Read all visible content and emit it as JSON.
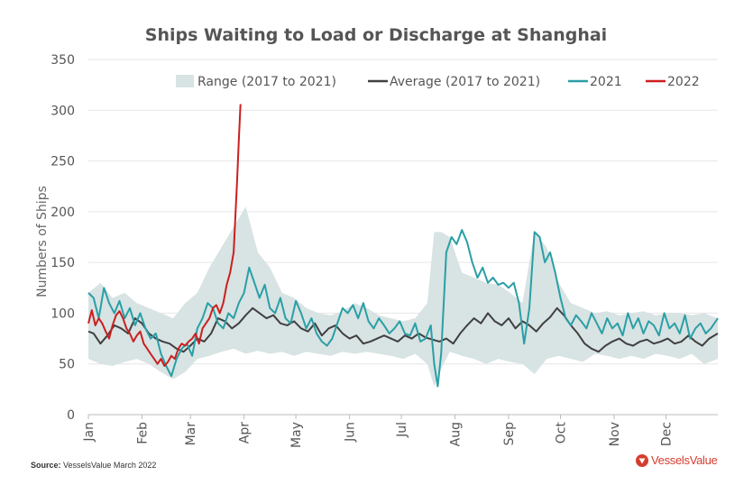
{
  "source": {
    "prefix": "Source:",
    "text": "VesselsValue March 2022"
  },
  "brand": {
    "name": "VesselsValue",
    "color": "#d63d2e",
    "icon": "vesselsvalue-logo-icon"
  },
  "chart_data": {
    "type": "line",
    "title": "Ships Waiting to Load or Discharge at Shanghai",
    "xlabel": "",
    "ylabel": "Numbers of Ships",
    "ylim": [
      0,
      350
    ],
    "yticks": [
      0,
      50,
      100,
      150,
      200,
      250,
      300,
      350
    ],
    "x_tick_labels": [
      "Jan",
      "Feb",
      "Mar",
      "Apr",
      "May",
      "Jun",
      "Jul",
      "Aug",
      "Sep",
      "Oct",
      "Nov",
      "Dec"
    ],
    "x_unit": "day of year",
    "xlim": [
      1,
      365
    ],
    "grid": "horizontal",
    "legend_position": "top-right",
    "range_band": {
      "name": "Range (2017 to 2021)",
      "color": "#d8e3e3",
      "x": [
        1,
        8,
        15,
        22,
        29,
        36,
        43,
        50,
        57,
        64,
        71,
        78,
        85,
        92,
        99,
        106,
        113,
        120,
        127,
        134,
        141,
        148,
        155,
        162,
        169,
        176,
        183,
        190,
        197,
        201,
        205,
        210,
        217,
        224,
        231,
        238,
        245,
        252,
        259,
        266,
        273,
        280,
        287,
        294,
        301,
        308,
        315,
        322,
        329,
        336,
        343,
        350,
        357,
        365
      ],
      "low": [
        55,
        50,
        48,
        52,
        55,
        50,
        42,
        35,
        42,
        55,
        58,
        62,
        65,
        60,
        63,
        60,
        62,
        58,
        62,
        60,
        58,
        62,
        60,
        62,
        60,
        58,
        55,
        60,
        50,
        28,
        45,
        62,
        58,
        55,
        50,
        55,
        52,
        50,
        40,
        55,
        58,
        55,
        52,
        60,
        58,
        55,
        58,
        55,
        60,
        58,
        55,
        60,
        50,
        55
      ],
      "high": [
        120,
        130,
        115,
        120,
        110,
        105,
        100,
        95,
        110,
        120,
        145,
        165,
        185,
        205,
        160,
        145,
        120,
        115,
        105,
        100,
        98,
        102,
        110,
        105,
        98,
        95,
        92,
        95,
        110,
        180,
        180,
        175,
        140,
        135,
        130,
        128,
        120,
        110,
        180,
        165,
        130,
        110,
        105,
        100,
        102,
        98,
        100,
        102,
        98,
        100,
        100,
        98,
        100,
        95
      ]
    },
    "series": [
      {
        "name": "Average (2017 to 2021)",
        "color": "#404040",
        "x": [
          1,
          4,
          8,
          12,
          16,
          20,
          24,
          28,
          32,
          36,
          40,
          44,
          48,
          52,
          56,
          60,
          64,
          68,
          72,
          76,
          80,
          84,
          88,
          92,
          96,
          100,
          104,
          108,
          112,
          116,
          120,
          124,
          128,
          132,
          136,
          140,
          144,
          148,
          152,
          156,
          160,
          164,
          168,
          172,
          176,
          180,
          184,
          188,
          192,
          196,
          200,
          204,
          208,
          212,
          216,
          220,
          224,
          228,
          232,
          236,
          240,
          244,
          248,
          252,
          256,
          260,
          264,
          268,
          272,
          276,
          280,
          284,
          288,
          292,
          296,
          300,
          304,
          308,
          312,
          316,
          320,
          324,
          328,
          332,
          336,
          340,
          344,
          348,
          352,
          356,
          360,
          365
        ],
        "values": [
          82,
          80,
          70,
          78,
          88,
          85,
          80,
          95,
          90,
          80,
          75,
          72,
          70,
          65,
          62,
          68,
          75,
          72,
          80,
          95,
          92,
          85,
          90,
          98,
          105,
          100,
          95,
          98,
          90,
          88,
          92,
          85,
          82,
          90,
          78,
          85,
          88,
          80,
          75,
          78,
          70,
          72,
          75,
          78,
          75,
          72,
          78,
          75,
          80,
          76,
          74,
          72,
          75,
          70,
          80,
          88,
          95,
          90,
          100,
          92,
          88,
          95,
          85,
          92,
          88,
          82,
          90,
          96,
          105,
          98,
          88,
          80,
          70,
          65,
          62,
          68,
          72,
          75,
          70,
          68,
          72,
          74,
          70,
          72,
          75,
          70,
          72,
          78,
          72,
          68,
          75,
          80
        ]
      },
      {
        "name": "2021",
        "color": "#2a9fa6",
        "x": [
          1,
          4,
          7,
          10,
          13,
          16,
          19,
          22,
          25,
          28,
          31,
          34,
          37,
          40,
          43,
          46,
          49,
          52,
          55,
          58,
          61,
          64,
          67,
          70,
          73,
          76,
          79,
          82,
          85,
          88,
          91,
          94,
          97,
          100,
          103,
          106,
          109,
          112,
          115,
          118,
          121,
          124,
          127,
          130,
          133,
          136,
          139,
          142,
          145,
          148,
          151,
          154,
          157,
          160,
          163,
          166,
          169,
          172,
          175,
          178,
          181,
          184,
          187,
          190,
          193,
          196,
          199,
          201,
          203,
          205,
          208,
          211,
          214,
          217,
          220,
          223,
          226,
          229,
          232,
          235,
          238,
          241,
          244,
          247,
          250,
          253,
          256,
          259,
          262,
          265,
          268,
          271,
          274,
          277,
          280,
          283,
          286,
          289,
          292,
          295,
          298,
          301,
          304,
          307,
          310,
          313,
          316,
          319,
          322,
          325,
          328,
          331,
          334,
          337,
          340,
          343,
          346,
          349,
          352,
          355,
          358,
          361,
          365
        ],
        "values": [
          120,
          115,
          95,
          125,
          110,
          100,
          112,
          95,
          105,
          88,
          100,
          85,
          75,
          80,
          60,
          48,
          38,
          55,
          65,
          70,
          58,
          85,
          95,
          110,
          105,
          90,
          85,
          100,
          95,
          110,
          120,
          145,
          130,
          115,
          128,
          105,
          100,
          115,
          95,
          90,
          112,
          100,
          85,
          95,
          80,
          72,
          68,
          75,
          90,
          105,
          100,
          108,
          95,
          110,
          92,
          85,
          95,
          88,
          80,
          85,
          92,
          80,
          78,
          90,
          72,
          75,
          88,
          50,
          28,
          60,
          160,
          175,
          168,
          182,
          170,
          150,
          135,
          145,
          130,
          135,
          128,
          130,
          125,
          130,
          110,
          70,
          105,
          180,
          175,
          150,
          160,
          140,
          115,
          95,
          88,
          98,
          92,
          85,
          100,
          90,
          80,
          95,
          85,
          90,
          78,
          100,
          85,
          95,
          80,
          92,
          88,
          78,
          100,
          85,
          90,
          80,
          98,
          75,
          85,
          90,
          80,
          85,
          95
        ]
      },
      {
        "name": "2022",
        "color": "#cc1f1f",
        "x": [
          1,
          3,
          5,
          7,
          9,
          11,
          13,
          15,
          17,
          19,
          21,
          23,
          25,
          27,
          29,
          31,
          33,
          35,
          37,
          39,
          41,
          43,
          45,
          47,
          49,
          51,
          53,
          55,
          57,
          59,
          61,
          63,
          65,
          67,
          69,
          71,
          73,
          75,
          77,
          79,
          81,
          83,
          85,
          86,
          87,
          88,
          89
        ],
        "values": [
          90,
          103,
          88,
          95,
          90,
          82,
          75,
          88,
          98,
          102,
          95,
          85,
          80,
          72,
          78,
          82,
          70,
          65,
          60,
          55,
          50,
          55,
          48,
          52,
          58,
          55,
          65,
          70,
          68,
          72,
          75,
          80,
          70,
          85,
          90,
          95,
          105,
          108,
          100,
          110,
          128,
          140,
          160,
          195,
          230,
          270,
          306
        ]
      }
    ]
  }
}
